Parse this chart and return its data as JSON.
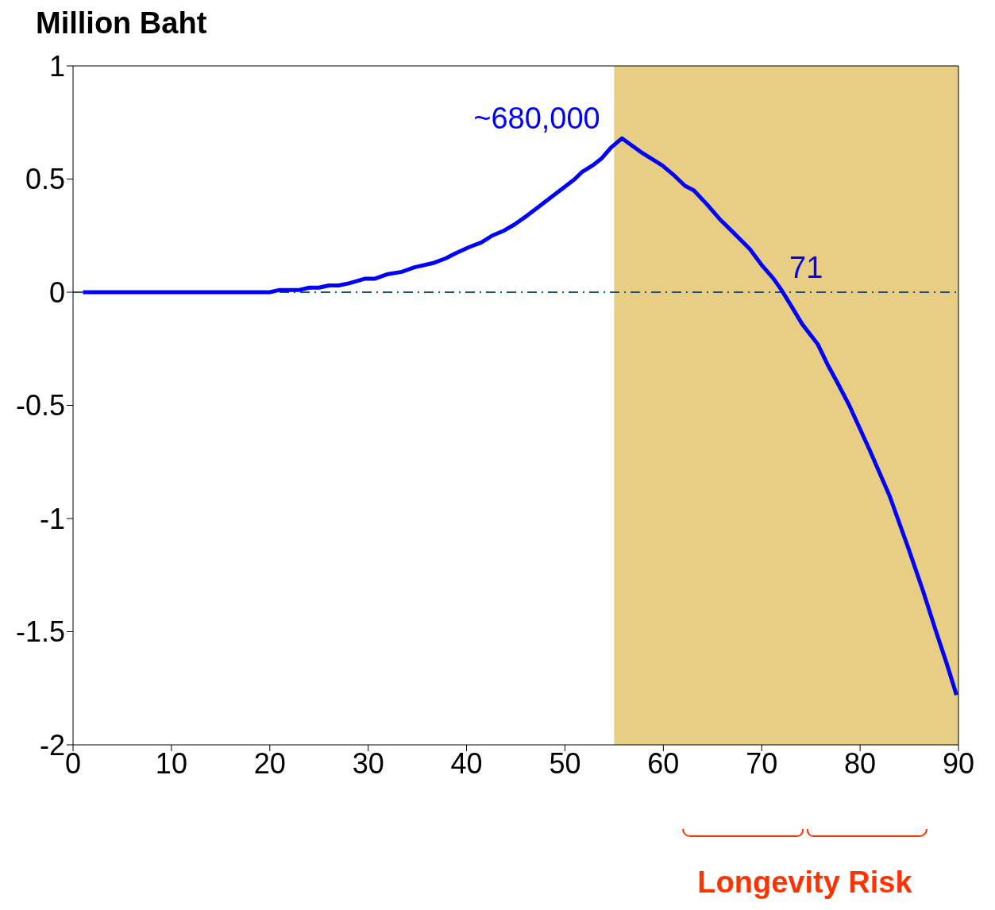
{
  "chart_data": {
    "type": "line",
    "ylabel": "Million Baht",
    "x": [
      1,
      5,
      10,
      15,
      20,
      21,
      23,
      24,
      25,
      26,
      27,
      28.1,
      29.7,
      30.7,
      32,
      33.4,
      34.7,
      36.7,
      37.9,
      38.8,
      40.3,
      41.5,
      42.6,
      43.7,
      44.9,
      46.2,
      47.4,
      48.6,
      49.8,
      51,
      51.7,
      52.8,
      53.7,
      54.7,
      55.8,
      57.7,
      59.9,
      61,
      62.2,
      63.1,
      64.4,
      65.8,
      67.2,
      68.8,
      70,
      71.2,
      72,
      73,
      74.1,
      75.7,
      76.7,
      77.7,
      78.9,
      81,
      83,
      84.9,
      86.4,
      87.8,
      88.8,
      89.8
    ],
    "series": [
      {
        "color": "#0000ff",
        "values": [
          0,
          0,
          0,
          0,
          0,
          0.01,
          0.01,
          0.02,
          0.02,
          0.03,
          0.03,
          0.04,
          0.06,
          0.06,
          0.08,
          0.09,
          0.11,
          0.13,
          0.15,
          0.17,
          0.2,
          0.22,
          0.25,
          0.27,
          0.3,
          0.34,
          0.38,
          0.42,
          0.46,
          0.5,
          0.53,
          0.56,
          0.59,
          0.64,
          0.68,
          0.62,
          0.56,
          0.52,
          0.47,
          0.45,
          0.39,
          0.32,
          0.26,
          0.19,
          0.12,
          0.06,
          0.01,
          -0.06,
          -0.14,
          -0.23,
          -0.32,
          -0.4,
          -0.5,
          -0.7,
          -0.9,
          -1.13,
          -1.32,
          -1.51,
          -1.64,
          -1.78
        ]
      }
    ],
    "xlim": [
      0,
      90
    ],
    "xticks": [
      0,
      10,
      20,
      30,
      40,
      50,
      60,
      70,
      80,
      90
    ],
    "ylim": [
      -2,
      1
    ],
    "yticks": [
      -2,
      -1.5,
      -1,
      -0.5,
      0,
      0.5,
      1
    ],
    "grid": false,
    "legend": false,
    "marker": "none",
    "line_style": "solid",
    "ref_lines": [
      {
        "axis": "y",
        "value": 0,
        "color": "#1f4e79",
        "line_style": "dashed"
      }
    ],
    "bands": [
      {
        "axis": "x",
        "from": 55,
        "to": 90,
        "color": "#e6c878"
      }
    ],
    "annotations": [
      {
        "text": "~680,000",
        "x": 56,
        "y": 0.68
      },
      {
        "text": "71",
        "x": 72,
        "y": 0
      },
      "Longevity Risk"
    ]
  }
}
